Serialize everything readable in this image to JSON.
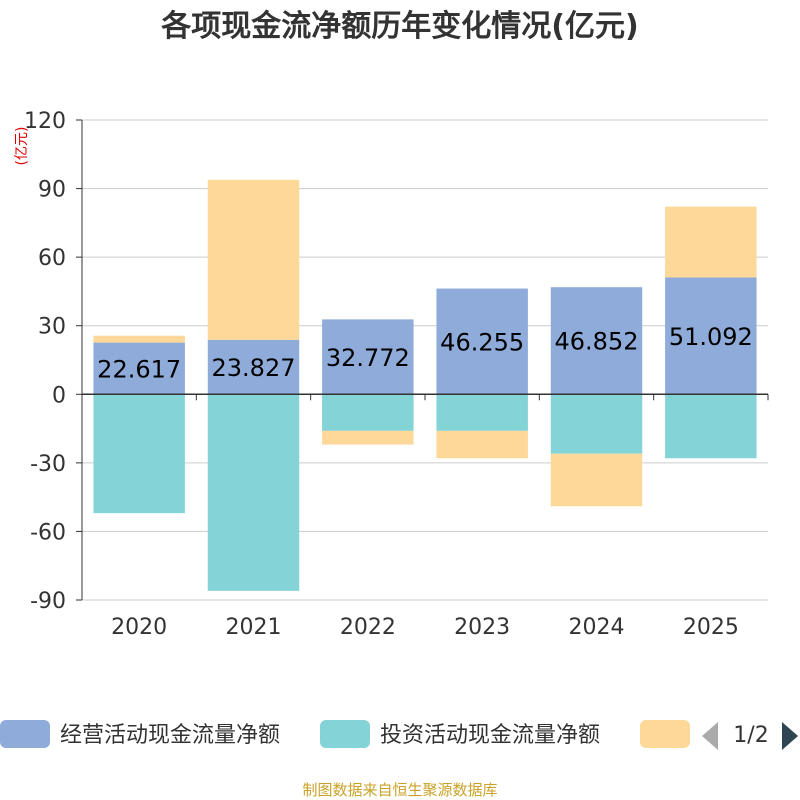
{
  "chart_data": {
    "type": "bar",
    "stacked": true,
    "title": "各项现金流净额历年变化情况(亿元)",
    "ylabel": "(亿元)",
    "categories": [
      "2020",
      "2021",
      "2022",
      "2023",
      "2024",
      "2025"
    ],
    "ylim": [
      -90,
      120
    ],
    "yticks": [
      120,
      90,
      60,
      30,
      0,
      -30,
      -60,
      -90
    ],
    "grid": true,
    "legend_position": "bottom",
    "series": [
      {
        "name": "经营活动现金流量净额",
        "color": "#8eabda",
        "values": [
          22.617,
          23.827,
          32.772,
          46.255,
          46.852,
          51.092
        ],
        "labeled": true
      },
      {
        "name": "投资活动现金流量净额",
        "color": "#84d3d6",
        "values": [
          -52,
          -86,
          -16,
          -16,
          -26,
          -28
        ],
        "labeled": false
      },
      {
        "name": "",
        "color": "#fdd899",
        "values": [
          3,
          70,
          -6,
          -12,
          -23,
          31
        ],
        "labeled": false
      }
    ],
    "data_labels": [
      "22.617",
      "23.827",
      "32.772",
      "46.255",
      "46.852",
      "51.092"
    ]
  },
  "legend": {
    "pager_text": "1/2",
    "prev_icon": "triangle-left-icon",
    "next_icon": "triangle-right-icon"
  },
  "footer": {
    "source": "制图数据来自恒生聚源数据库"
  },
  "colors": {
    "axis": "#333333",
    "grid": "#cccccc",
    "unit": "#e00000",
    "pager_inactive": "#aaaaaa",
    "pager_active": "#2f4554"
  }
}
